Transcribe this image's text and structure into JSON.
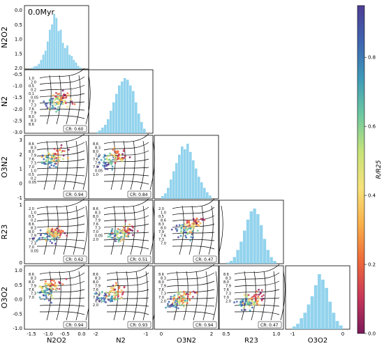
{
  "figure": {
    "age_label": "0.0Myr",
    "colorbar": {
      "label": "R/R25",
      "ticks": [
        "0.0",
        "0.2",
        "0.4",
        "0.6",
        "0.8"
      ],
      "range": [
        0,
        0.95
      ],
      "colors": [
        "#7a1a5a",
        "#c8385a",
        "#ee6a3a",
        "#f9b04a",
        "#f7e27a",
        "#c6e37a",
        "#6dc8a0",
        "#3e9ab8",
        "#3f64b0",
        "#4d3d94"
      ]
    },
    "hist_color": "#87ceeb"
  },
  "chart_data": [
    {
      "type": "histogram",
      "id": "N2O2-hist",
      "ylabel": "N2O2",
      "yticks": [
        "0.0",
        "0.5",
        "1.0",
        "1.5",
        "2.0"
      ],
      "ylim": [
        0,
        2.35
      ],
      "xlim": [
        -1.6,
        0.2
      ],
      "values": [
        0.05,
        0.1,
        0.12,
        0.2,
        0.35,
        0.55,
        0.7,
        1.05,
        1.5,
        1.7,
        2.1,
        1.95,
        1.45,
        1.5,
        1.0,
        0.8,
        0.9,
        0.55,
        0.5,
        0.35,
        0.25,
        0.12,
        0.06
      ]
    },
    {
      "type": "scatter",
      "id": "N2-vs-N2O2",
      "xlabel": "",
      "ylabel": "N2",
      "yticks": [
        "-0.5",
        "-1.0",
        "-1.5",
        "-2.0",
        "-2.5",
        "-3.0"
      ],
      "ylim": [
        -3.15,
        -0.3
      ],
      "xlim": [
        -1.6,
        0.2
      ],
      "cr": "CR: 0.60",
      "grid_labels": [
        "1.0",
        "2.0",
        "0.5",
        "0.2",
        "0.1",
        "0.05",
        "7.0",
        "7.3",
        "7.6",
        "7.9",
        "8.0",
        "8.3",
        "8.6"
      ]
    },
    {
      "type": "histogram",
      "id": "N2-hist",
      "values": [
        0.02,
        0.05,
        0.1,
        0.15,
        0.25,
        0.4,
        0.55,
        0.7,
        0.85,
        0.92,
        0.98,
        0.95,
        0.85,
        0.75,
        0.55,
        0.35,
        0.2,
        0.08
      ]
    },
    {
      "type": "scatter",
      "id": "O3N2-vs-N2O2",
      "ylabel": "O3N2",
      "yticks": [
        "3",
        "2",
        "1",
        "0",
        "-1"
      ],
      "ylim": [
        -1.3,
        3.5
      ],
      "xlim": [
        -1.6,
        0.2
      ],
      "cr": "CR: 0.94",
      "grid_labels": [
        "8.6",
        "8.3",
        "8.0",
        "7.9",
        "7.6",
        "7.3",
        "7.0",
        "1.0",
        "0.5",
        "0.2",
        "0.05"
      ]
    },
    {
      "type": "scatter",
      "id": "O3N2-vs-N2",
      "xlim": [
        -3.2,
        -0.3
      ],
      "ylim": [
        -1.3,
        3.5
      ],
      "cr": "CR: 0.84",
      "grid_labels": [
        "8.6",
        "8.3",
        "8.0",
        "7.9",
        "7.6",
        "7.3",
        "7.0",
        "0.05",
        "1.0"
      ]
    },
    {
      "type": "histogram",
      "id": "O3N2-hist",
      "values": [
        0.05,
        0.1,
        0.2,
        0.35,
        0.5,
        0.65,
        0.8,
        0.95,
        0.9,
        1.0,
        0.85,
        0.7,
        0.55,
        0.4,
        0.3,
        0.2,
        0.12,
        0.06
      ]
    },
    {
      "type": "scatter",
      "id": "R23-vs-N2O2",
      "ylabel": "R23",
      "yticks": [
        "1",
        "0"
      ],
      "ylim": [
        -0.7,
        1.5
      ],
      "xlim": [
        -1.6,
        0.2
      ],
      "cr": "CR: 0.62",
      "grid_labels": [
        "2.0",
        "1.0",
        "0.5",
        "0.2",
        "8.6",
        "8.3",
        "8.0",
        "7.9",
        "7.6",
        "7.3",
        "7.0",
        "0.05"
      ]
    },
    {
      "type": "scatter",
      "id": "R23-vs-N2",
      "xlim": [
        -3.2,
        -0.3
      ],
      "ylim": [
        -0.7,
        1.5
      ],
      "cr": "CR: 0.51",
      "grid_labels": [
        "8.6",
        "8.3",
        "8.0",
        "7.9",
        "7.6",
        "7.3",
        "7.0",
        "0.05",
        "2.0"
      ]
    },
    {
      "type": "scatter",
      "id": "R23-vs-O3N2",
      "xlim": [
        -1.3,
        3.5
      ],
      "ylim": [
        -0.7,
        1.5
      ],
      "cr": "CR: 0.47",
      "grid_labels": [
        "2.0",
        "1.0",
        "0.5",
        "8.6",
        "8.3",
        "8.0",
        "7.9",
        "7.6",
        "7.3",
        "7.0"
      ]
    },
    {
      "type": "histogram",
      "id": "R23-hist",
      "values": [
        0.02,
        0.05,
        0.12,
        0.25,
        0.4,
        0.6,
        0.8,
        0.95,
        1.0,
        0.9,
        0.7,
        0.45,
        0.25,
        0.12,
        0.05
      ]
    },
    {
      "type": "scatter",
      "id": "O3O2-vs-N2O2",
      "ylabel": "O3O2",
      "xlabel": "N2O2",
      "yticks": [
        "1.0",
        "0.5",
        "0.0",
        "-0.5",
        "-1.0"
      ],
      "xticks": [
        "-1.5",
        "-1.0",
        "-0.5",
        "0.0"
      ],
      "ylim": [
        -1.15,
        1.25
      ],
      "xlim": [
        -1.6,
        0.2
      ],
      "cr": "CR: 0.94",
      "grid_labels": [
        "8.6",
        "8.3",
        "8.0",
        "7.9",
        "7.6",
        "7.3",
        "7.0"
      ]
    },
    {
      "type": "scatter",
      "id": "O3O2-vs-N2",
      "xlabel": "N2",
      "xticks": [
        "-2",
        "-1"
      ],
      "xlim": [
        -3.2,
        -0.3
      ],
      "ylim": [
        -1.15,
        1.25
      ],
      "cr": "CR: 0.93",
      "grid_labels": [
        "8.6",
        "8.3",
        "8.0",
        "7.9",
        "7.6",
        "7.3",
        "7.0",
        "0.05",
        "2.0"
      ]
    },
    {
      "type": "scatter",
      "id": "O3O2-vs-O3N2",
      "xlabel": "O3N2",
      "xticks": [
        "0",
        "2"
      ],
      "xlim": [
        -1.3,
        3.5
      ],
      "ylim": [
        -1.15,
        1.25
      ],
      "cr": "CR: 0.94",
      "grid_labels": [
        "8.6",
        "8.3",
        "8.0",
        "7.9",
        "7.6",
        "7.3",
        "7.0",
        "2.0"
      ]
    },
    {
      "type": "scatter",
      "id": "O3O2-vs-R23",
      "xlabel": "R23",
      "xticks": [
        "0.5",
        "1.0"
      ],
      "xlim": [
        0.0,
        1.5
      ],
      "ylim": [
        -1.15,
        1.25
      ],
      "cr": "CR: 0.47",
      "grid_labels": [
        "8.6",
        "8.3",
        "8.0",
        "7.9",
        "7.6",
        "7.3",
        "7.0",
        "2.0"
      ]
    },
    {
      "type": "histogram",
      "id": "O3O2-hist",
      "xlabel": "O3O2",
      "xticks": [
        "-1",
        "0"
      ],
      "values": [
        0.05,
        0.1,
        0.2,
        0.3,
        0.45,
        0.6,
        0.8,
        1.0,
        0.9,
        0.75,
        0.5,
        0.3,
        0.15,
        0.07
      ]
    }
  ]
}
